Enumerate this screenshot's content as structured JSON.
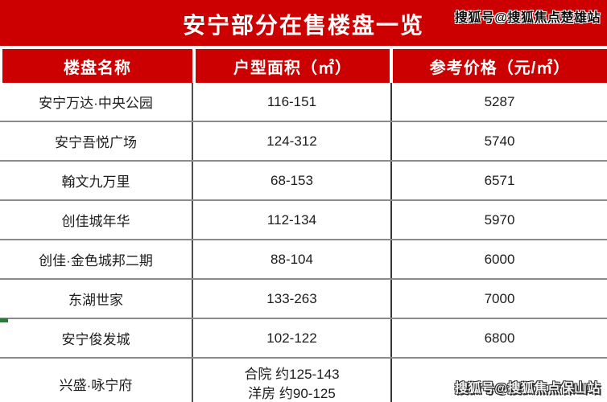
{
  "page": {
    "watermark_top_right": "搜狐号@搜狐焦点楚雄站",
    "watermark_bottom_right": "搜狐号@搜狐焦点保山站"
  },
  "chart_data": {
    "type": "table",
    "title": "安宁部分在售楼盘一览",
    "columns": [
      "楼盘名称",
      "户型面积（㎡）",
      "参考价格（元/㎡）"
    ],
    "rows": [
      [
        "安宁万达·中央公园",
        "116-151",
        "5287"
      ],
      [
        "安宁吾悦广场",
        "124-312",
        "5740"
      ],
      [
        "翰文九万里",
        "68-153",
        "6571"
      ],
      [
        "创佳城年华",
        "112-134",
        "5970"
      ],
      [
        "创佳·金色城邦二期",
        "88-104",
        "6000"
      ],
      [
        "东湖世家",
        "133-263",
        "7000"
      ],
      [
        "安宁俊发城",
        "102-122",
        "6800"
      ],
      [
        "兴盛·咏宁府",
        "合院 约125-143\n洋房 约90-125",
        ""
      ]
    ]
  },
  "colors": {
    "banner_red": "#cc0000",
    "header_text": "#ffffff",
    "body_text": "#1c1c1c",
    "row_border_gray": "#8a8a8a",
    "column_border_dark": "#3f3f3f",
    "corner_mark_green": "#2d7a3a"
  }
}
